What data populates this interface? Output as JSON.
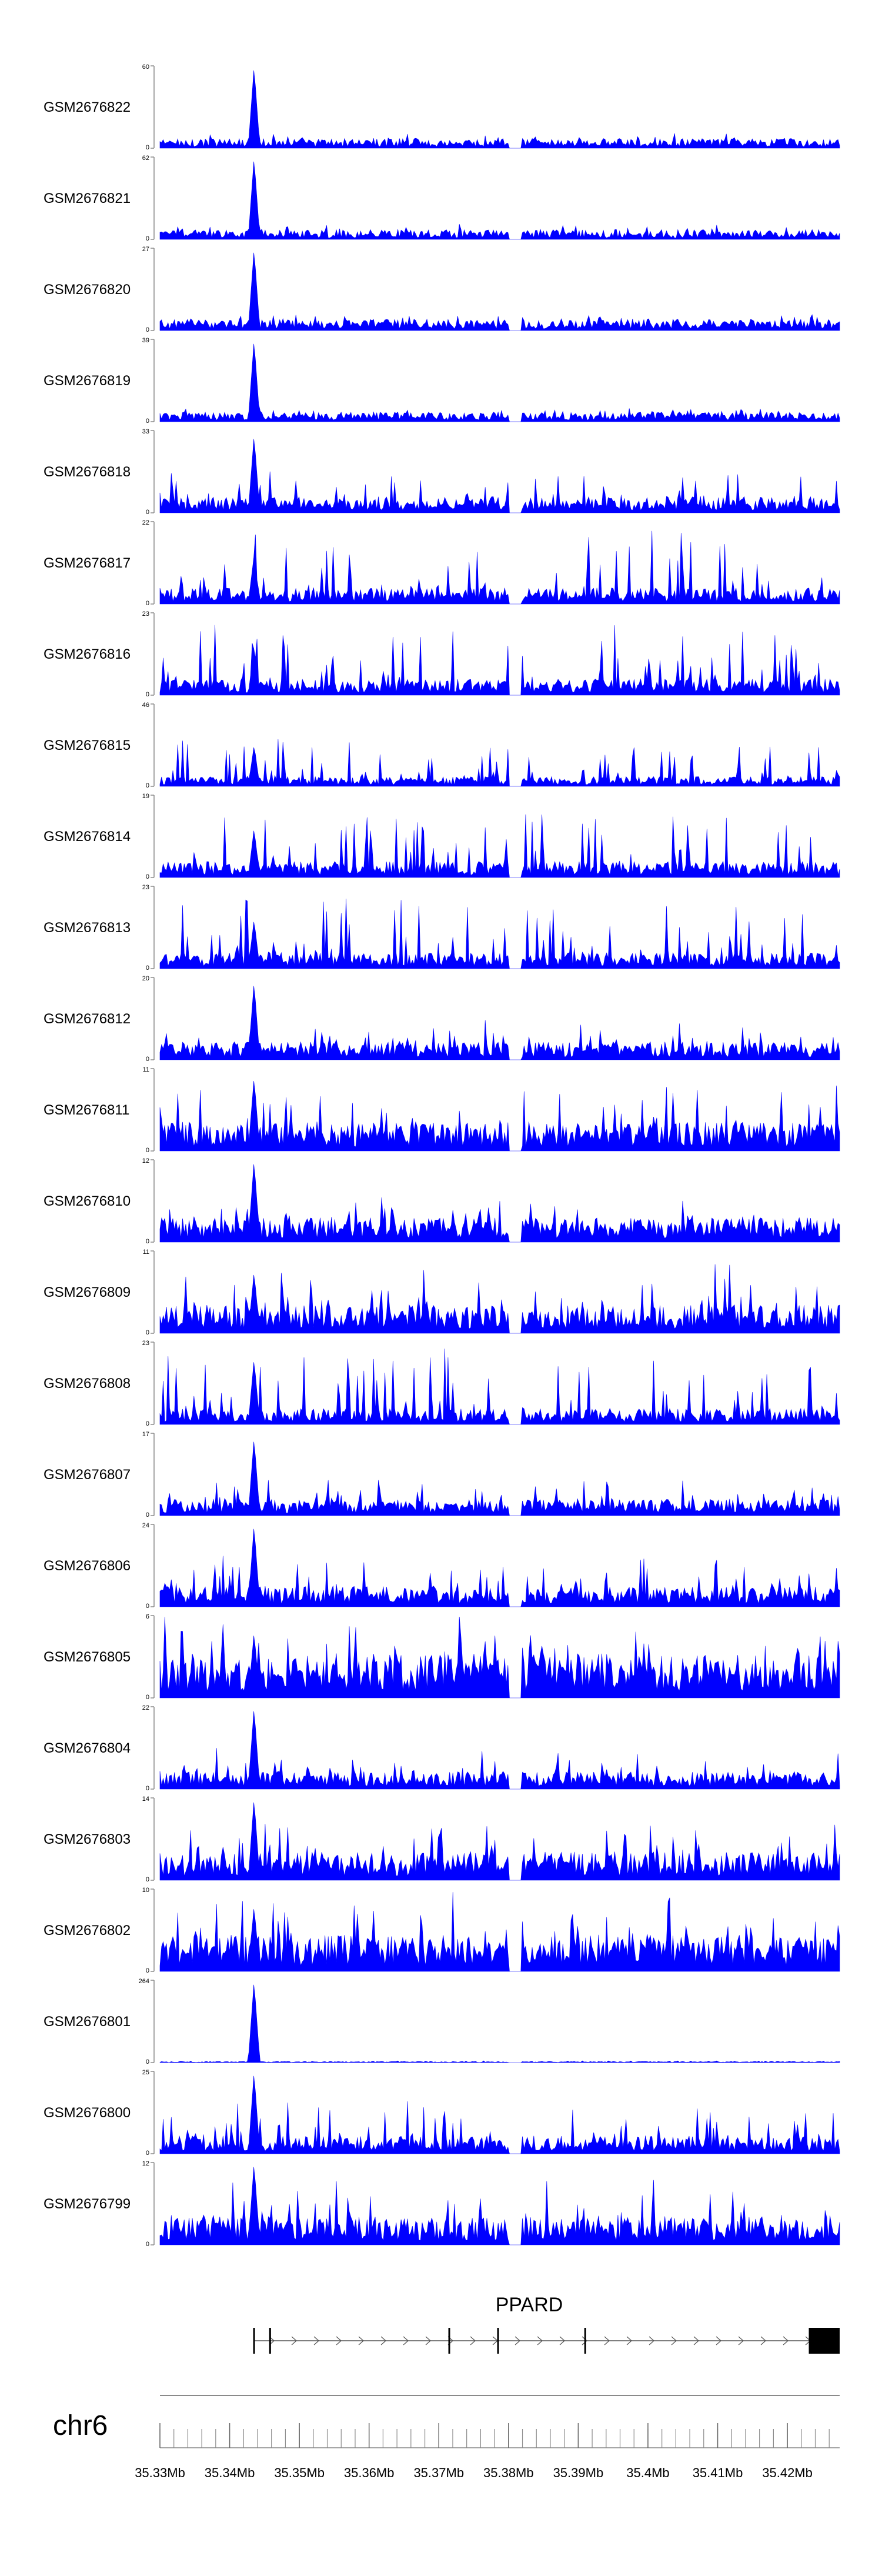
{
  "chart_data": {
    "type": "area",
    "title": "",
    "chromosome": "chr6",
    "region_mb": [
      35.33,
      35.4275
    ],
    "color": "#0000FF",
    "peak_mb": 35.3435,
    "gap_mb": [
      35.38,
      35.382
    ],
    "tracks": [
      {
        "name": "GSM2676822",
        "ymax": 60,
        "ymin": 0,
        "peak": 1.0,
        "bg": 0.12,
        "spike": 0.08
      },
      {
        "name": "GSM2676821",
        "ymax": 62,
        "ymin": 0,
        "peak": 1.0,
        "bg": 0.12,
        "spike": 0.08
      },
      {
        "name": "GSM2676820",
        "ymax": 27,
        "ymin": 0,
        "peak": 1.0,
        "bg": 0.14,
        "spike": 0.1
      },
      {
        "name": "GSM2676819",
        "ymax": 39,
        "ymin": 0,
        "peak": 1.0,
        "bg": 0.12,
        "spike": 0.08
      },
      {
        "name": "GSM2676818",
        "ymax": 33,
        "ymin": 0,
        "peak": 0.95,
        "bg": 0.2,
        "spike": 0.35
      },
      {
        "name": "GSM2676817",
        "ymax": 22,
        "ymin": 0,
        "peak": 0.6,
        "bg": 0.2,
        "spike": 0.75
      },
      {
        "name": "GSM2676816",
        "ymax": 23,
        "ymin": 0,
        "peak": 0.6,
        "bg": 0.2,
        "spike": 0.7
      },
      {
        "name": "GSM2676815",
        "ymax": 46,
        "ymin": 0,
        "peak": 0.5,
        "bg": 0.12,
        "spike": 0.5
      },
      {
        "name": "GSM2676814",
        "ymax": 19,
        "ymin": 0,
        "peak": 0.6,
        "bg": 0.2,
        "spike": 0.7
      },
      {
        "name": "GSM2676813",
        "ymax": 23,
        "ymin": 0,
        "peak": 0.6,
        "bg": 0.2,
        "spike": 0.75
      },
      {
        "name": "GSM2676812",
        "ymax": 20,
        "ymin": 0,
        "peak": 0.95,
        "bg": 0.22,
        "spike": 0.3
      },
      {
        "name": "GSM2676811",
        "ymax": 11,
        "ymin": 0,
        "peak": 0.9,
        "bg": 0.35,
        "spike": 0.55
      },
      {
        "name": "GSM2676810",
        "ymax": 12,
        "ymin": 0,
        "peak": 1.0,
        "bg": 0.3,
        "spike": 0.3
      },
      {
        "name": "GSM2676809",
        "ymax": 11,
        "ymin": 0,
        "peak": 0.75,
        "bg": 0.35,
        "spike": 0.55
      },
      {
        "name": "GSM2676808",
        "ymax": 23,
        "ymin": 0,
        "peak": 0.8,
        "bg": 0.2,
        "spike": 0.75
      },
      {
        "name": "GSM2676807",
        "ymax": 17,
        "ymin": 0,
        "peak": 0.95,
        "bg": 0.2,
        "spike": 0.3
      },
      {
        "name": "GSM2676806",
        "ymax": 24,
        "ymin": 0,
        "peak": 1.0,
        "bg": 0.25,
        "spike": 0.5
      },
      {
        "name": "GSM2676805",
        "ymax": 6,
        "ymin": 0,
        "peak": 0.8,
        "bg": 0.55,
        "spike": 0.55
      },
      {
        "name": "GSM2676804",
        "ymax": 22,
        "ymin": 0,
        "peak": 1.0,
        "bg": 0.22,
        "spike": 0.3
      },
      {
        "name": "GSM2676803",
        "ymax": 14,
        "ymin": 0,
        "peak": 1.0,
        "bg": 0.35,
        "spike": 0.5
      },
      {
        "name": "GSM2676802",
        "ymax": 10,
        "ymin": 0,
        "peak": 0.8,
        "bg": 0.45,
        "spike": 0.55
      },
      {
        "name": "GSM2676801",
        "ymax": 264,
        "ymin": 0,
        "peak": 1.0,
        "bg": 0.015,
        "spike": 0.01
      },
      {
        "name": "GSM2676800",
        "ymax": 25,
        "ymin": 0,
        "peak": 1.0,
        "bg": 0.22,
        "spike": 0.5
      },
      {
        "name": "GSM2676799",
        "ymax": 12,
        "ymin": 0,
        "peak": 1.0,
        "bg": 0.35,
        "spike": 0.55
      }
    ],
    "gene": {
      "name": "PPARD",
      "strand": "+",
      "start_mb": 35.3435,
      "end_mb": 35.4275,
      "exons_mb": [
        35.3435,
        35.3458,
        35.3715,
        35.3785,
        35.391,
        35.4232,
        35.4243,
        35.4255
      ],
      "cds_mb": [
        35.4232,
        35.4275
      ]
    },
    "axis": {
      "ticks": [
        "35.33Mb",
        "35.34Mb",
        "35.35Mb",
        "35.36Mb",
        "35.37Mb",
        "35.38Mb",
        "35.39Mb",
        "35.4Mb",
        "35.41Mb",
        "35.42Mb"
      ],
      "tick_values_mb": [
        35.33,
        35.34,
        35.35,
        35.36,
        35.37,
        35.38,
        35.39,
        35.4,
        35.41,
        35.42
      ],
      "minor_step_mb": 0.002
    }
  }
}
